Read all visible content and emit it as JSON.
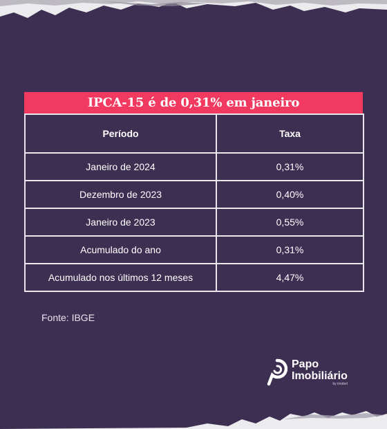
{
  "table": {
    "title": "IPCA-15 é de 0,31% em janeiro",
    "headers": [
      "Período",
      "Taxa"
    ],
    "rows": [
      {
        "period": "Janeiro de 2024",
        "rate": "0,31%"
      },
      {
        "period": "Dezembro de 2023",
        "rate": "0,40%"
      },
      {
        "period": "Janeiro de 2023",
        "rate": "0,55%"
      },
      {
        "period": "Acumulado do ano",
        "rate": "0,31%"
      },
      {
        "period": "Acumulado nos últimos 12 meses",
        "rate": "4,47%"
      }
    ]
  },
  "source": "Fonte: IBGE",
  "brand": {
    "line1": "Papo",
    "line2": "Imobiliário",
    "byline": "by imobel"
  },
  "colors": {
    "background": "#3d2f52",
    "title_bar": "#f2395f",
    "text": "#ffffff"
  }
}
